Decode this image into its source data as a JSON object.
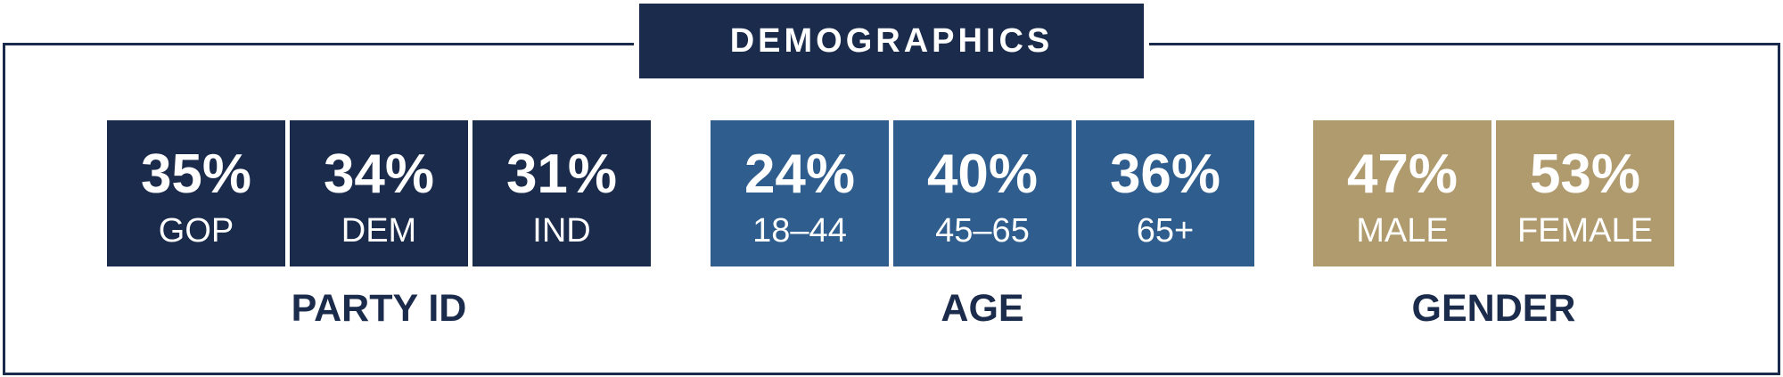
{
  "header": {
    "title": "DEMOGRAPHICS"
  },
  "groups": [
    {
      "label": "PARTY ID",
      "items": [
        {
          "value": "35%",
          "label": "GOP"
        },
        {
          "value": "34%",
          "label": "DEM"
        },
        {
          "value": "31%",
          "label": "IND"
        }
      ]
    },
    {
      "label": "AGE",
      "items": [
        {
          "value": "24%",
          "label": "18–44"
        },
        {
          "value": "40%",
          "label": "45–65"
        },
        {
          "value": "36%",
          "label": "65+"
        }
      ]
    },
    {
      "label": "GENDER",
      "items": [
        {
          "value": "47%",
          "label": "MALE"
        },
        {
          "value": "53%",
          "label": "FEMALE"
        }
      ]
    }
  ]
}
